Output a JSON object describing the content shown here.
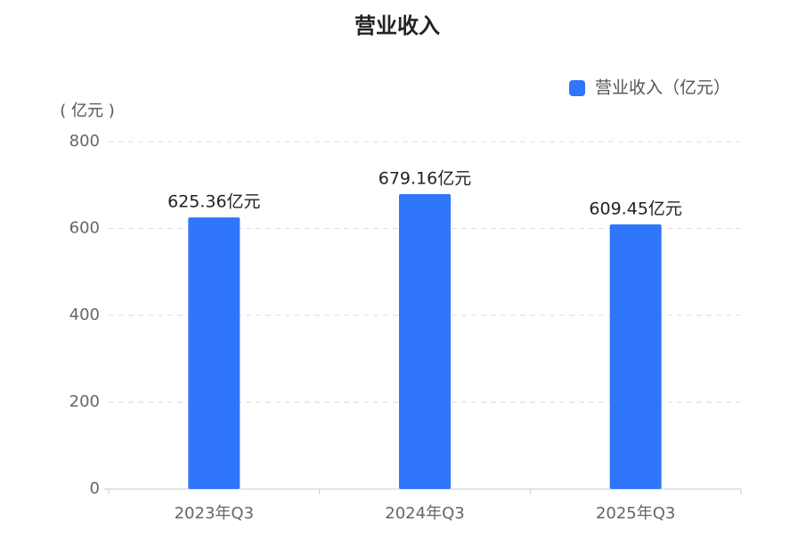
{
  "chart_data": {
    "type": "bar",
    "title": "营业收入",
    "y_axis_label": "( 亿元 )",
    "categories": [
      "2023年Q3",
      "2024年Q3",
      "2025年Q3"
    ],
    "series": [
      {
        "name": "营业收入（亿元）",
        "color": "#2f76fb",
        "values": [
          625.36,
          679.16,
          609.45
        ],
        "value_labels": [
          "625.36亿元",
          "679.16亿元",
          "609.45亿元"
        ]
      }
    ],
    "ylim": [
      0,
      800
    ],
    "yticks": [
      0,
      200,
      400,
      600,
      800
    ],
    "grid": true,
    "legend": "top-right"
  }
}
